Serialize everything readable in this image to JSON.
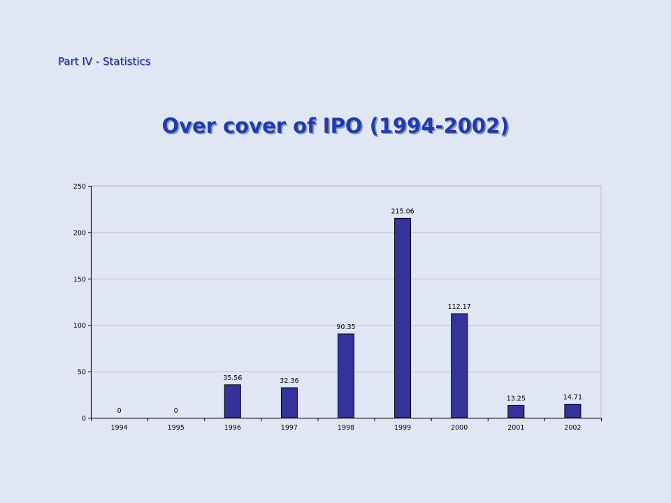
{
  "header": {
    "section_label": "Part IV - Statistics",
    "title": "Over cover of IPO (1994-2002)"
  },
  "chart_data": {
    "type": "bar",
    "title": "Over cover of IPO (1994-2002)",
    "categories": [
      "1994",
      "1995",
      "1996",
      "1997",
      "1998",
      "1999",
      "2000",
      "2001",
      "2002"
    ],
    "values": [
      0,
      0,
      35.56,
      32.36,
      90.35,
      215.06,
      112.17,
      13.25,
      14.71
    ],
    "data_labels": [
      "0",
      "0",
      "35.56",
      "32.36",
      "90.35",
      "215.06",
      "112.17",
      "13.25",
      "14.71"
    ],
    "y_ticks": [
      0,
      50,
      100,
      150,
      200,
      250
    ],
    "ylim": [
      0,
      250
    ],
    "xlabel": "",
    "ylabel": "",
    "grid": true,
    "legend": "none",
    "colors": {
      "bar": "#333399",
      "bar_outline": "#000000",
      "grid": "#c0c0c0",
      "plot_bg": "#e0e6f4"
    }
  }
}
